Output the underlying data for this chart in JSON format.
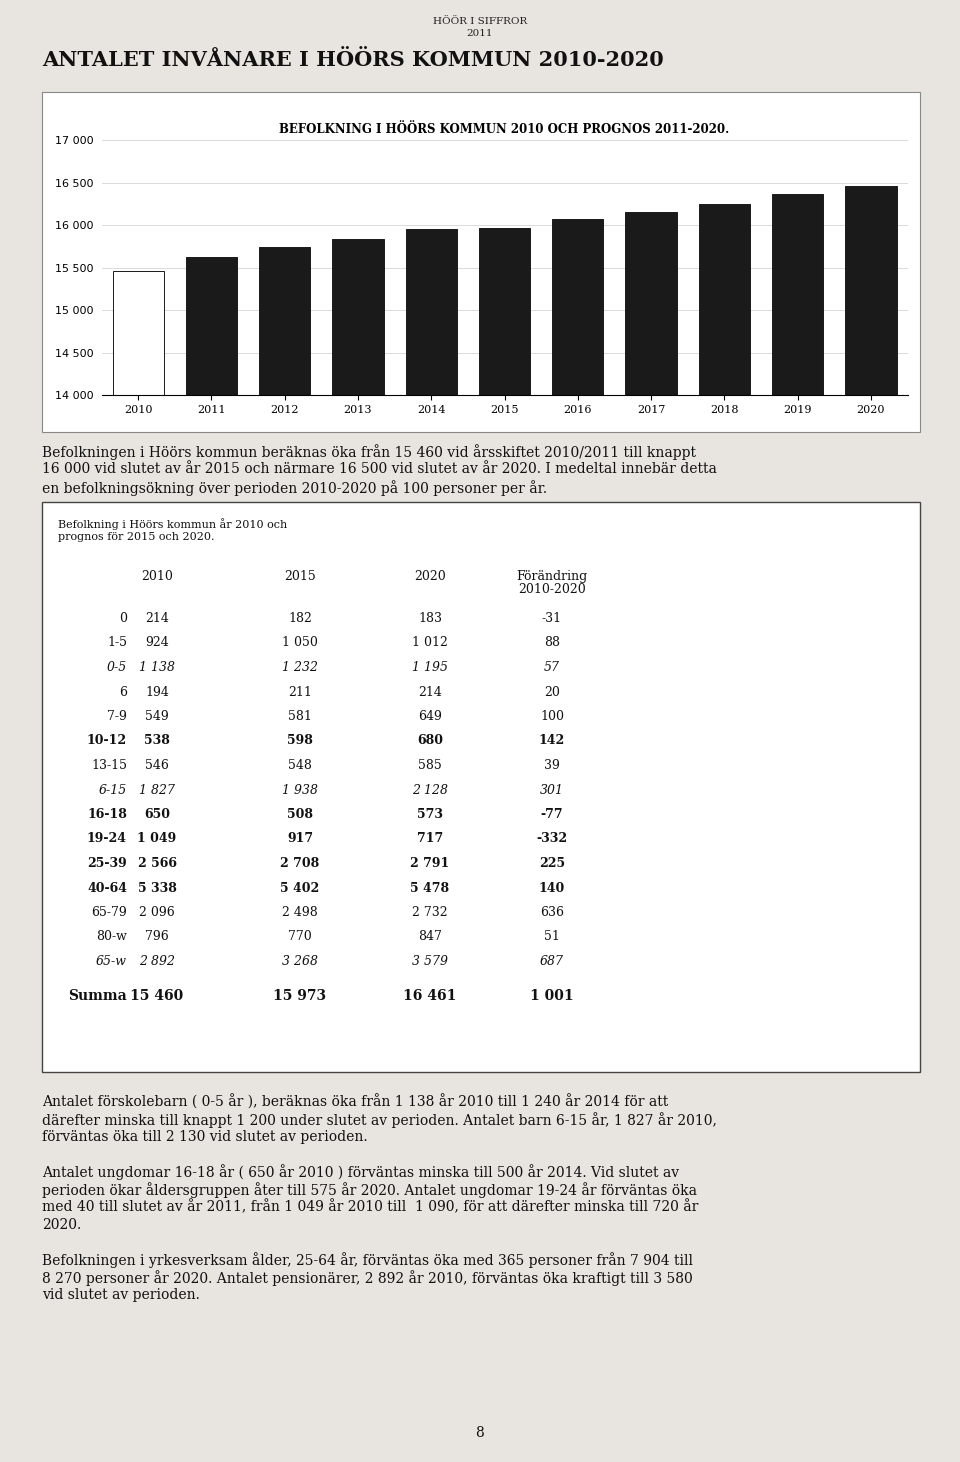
{
  "page_title_line1": "HÖÖR I SIFFROR",
  "page_title_line2": "2011",
  "section_title": "ANTALET INVÅNARE I HÖÖRS KOMMUN 2010-2020",
  "chart_title": "BEFOLKNING I HÖÖRS KOMMUN 2010 OCH PROGNOS 2011-2020.",
  "years": [
    2010,
    2011,
    2012,
    2013,
    2014,
    2015,
    2016,
    2017,
    2018,
    2019,
    2020
  ],
  "values": [
    15460,
    15630,
    15750,
    15840,
    15960,
    15973,
    16080,
    16160,
    16250,
    16370,
    16461
  ],
  "bar_colors": [
    "#ffffff",
    "#1a1a1a",
    "#1a1a1a",
    "#1a1a1a",
    "#1a1a1a",
    "#1a1a1a",
    "#1a1a1a",
    "#1a1a1a",
    "#1a1a1a",
    "#1a1a1a",
    "#1a1a1a"
  ],
  "bar_edge_color": "#1a1a1a",
  "ylim": [
    14000,
    17000
  ],
  "yticks": [
    14000,
    14500,
    15000,
    15500,
    16000,
    16500,
    17000
  ],
  "paragraph1": "Befolkningen i Höörs kommun beräknas öka från 15 460 vid årsskiftet 2010/2011 till knappt 16 000 vid slutet av år 2015 och närmare 16 500 vid slutet av år 2020. I medeltal innebär detta en befolkningsökning över perioden 2010-2020 på 100 personer per år.",
  "table_subtitle_line1": "Befolkning i Höörs kommun år 2010 och",
  "table_subtitle_line2": "prognos för 2015 och 2020.",
  "table_rows": [
    [
      "0",
      "214",
      "182",
      "183",
      "-31",
      false,
      false
    ],
    [
      "1-5",
      "924",
      "1 050",
      "1 012",
      "88",
      false,
      false
    ],
    [
      "0-5",
      "1 138",
      "1 232",
      "1 195",
      "57",
      true,
      false
    ],
    [
      "6",
      "194",
      "211",
      "214",
      "20",
      false,
      false
    ],
    [
      "7-9",
      "549",
      "581",
      "649",
      "100",
      false,
      false
    ],
    [
      "10-12",
      "538",
      "598",
      "680",
      "142",
      false,
      true
    ],
    [
      "13-15",
      "546",
      "548",
      "585",
      "39",
      false,
      false
    ],
    [
      "6-15",
      "1 827",
      "1 938",
      "2 128",
      "301",
      true,
      false
    ],
    [
      "16-18",
      "650",
      "508",
      "573",
      "-77",
      false,
      true
    ],
    [
      "19-24",
      "1 049",
      "917",
      "717",
      "-332",
      false,
      true
    ],
    [
      "25-39",
      "2 566",
      "2 708",
      "2 791",
      "225",
      false,
      true
    ],
    [
      "40-64",
      "5 338",
      "5 402",
      "5 478",
      "140",
      false,
      true
    ],
    [
      "65-79",
      "2 096",
      "2 498",
      "2 732",
      "636",
      false,
      false
    ],
    [
      "80-w",
      "796",
      "770",
      "847",
      "51",
      false,
      false
    ],
    [
      "65-w",
      "2 892",
      "3 268",
      "3 579",
      "687",
      true,
      false
    ]
  ],
  "table_summa": [
    "Summa",
    "15 460",
    "15 973",
    "16 461",
    "1 001"
  ],
  "paragraph2": "Antalet förskolebarn ( 0-5 år ), beräknas öka från 1 138 år 2010 till 1 240 år 2014 för att därefter minska till knappt 1 200 under slutet av perioden. Antalet barn 6-15 år, 1 827 år 2010, förväntas öka till 2 130 vid slutet av perioden.",
  "paragraph3": "Antalet ungdomar 16-18 år ( 650 år 2010 ) förväntas minska till 500 år 2014. Vid slutet av perioden ökar åldersgruppen åter till 575 år 2020. Antalet ungdomar 19-24 år förväntas öka med 40 till slutet av år 2011, från 1 049 år 2010 till  1 090, för att därefter minska till 720 år 2020.",
  "paragraph4": "Befolkningen i yrkesverksam ålder, 25-64 år, förväntas öka med 365 personer från 7 904 till 8 270 personer år 2020. Antalet pensionärer, 2 892 år 2010, förväntas öka kraftigt till 3 580 vid slutet av perioden.",
  "page_number": "8",
  "background_color": "#e8e4df",
  "chart_bg": "#ffffff"
}
